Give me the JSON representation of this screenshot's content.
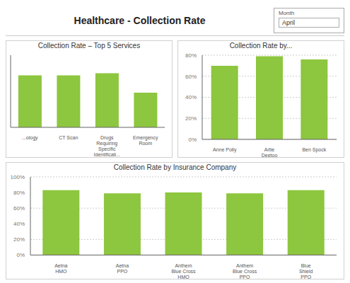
{
  "title": "Healthcare - Collection Rate",
  "annotations": [
    "Month",
    "April"
  ],
  "chart_data": [
    {
      "type": "bar",
      "title": "Collection Rate – Top 5 Services",
      "categories": [
        "...ology",
        "CT Scan",
        "Drugs\nRequiring\nSpecific\nIdentificati...",
        "Emergency\nRoom"
      ],
      "values": [
        72,
        72,
        75,
        48
      ],
      "color": "#8dc63f",
      "ylim": [
        0,
        100
      ],
      "yticks": [],
      "grid": false,
      "tick_labels": "x"
    },
    {
      "type": "bar",
      "title": "Collection Rate by Insurance Company",
      "categories": [
        "Aetna\nHMO",
        "Aetna\nPPO",
        "Anthem\nBlue Cross\nHMO",
        "Anthem\nBlue Cross\nPPO",
        "Blue\nShield\nPPO"
      ],
      "values": [
        83,
        79,
        80,
        79,
        83
      ],
      "color": "#8dc63f",
      "ylim": [
        0,
        100
      ],
      "yticks": [
        {
          "value": 0,
          "label": "0%"
        },
        {
          "value": 20,
          "label": "20%"
        },
        {
          "value": 40,
          "label": "40%"
        },
        {
          "value": 60,
          "label": "60%"
        },
        {
          "value": 80,
          "label": "80%"
        },
        {
          "value": 100,
          "label": "100%"
        }
      ],
      "grid": true
    },
    {
      "type": "bar",
      "title": "Collection Rate by...",
      "categories": [
        "Anne Polly",
        "Artie\nDeetoo",
        "Ben Spock"
      ],
      "values": [
        70,
        79,
        76
      ],
      "color": "#8dc63f",
      "ylim": [
        0,
        80
      ],
      "yticks": [
        {
          "value": 0,
          "label": "0%"
        },
        {
          "value": 20,
          "label": "20%"
        },
        {
          "value": 40,
          "label": "40%"
        },
        {
          "value": 60,
          "label": "60%"
        },
        {
          "value": 80,
          "label": "80%"
        }
      ],
      "grid": true
    }
  ]
}
